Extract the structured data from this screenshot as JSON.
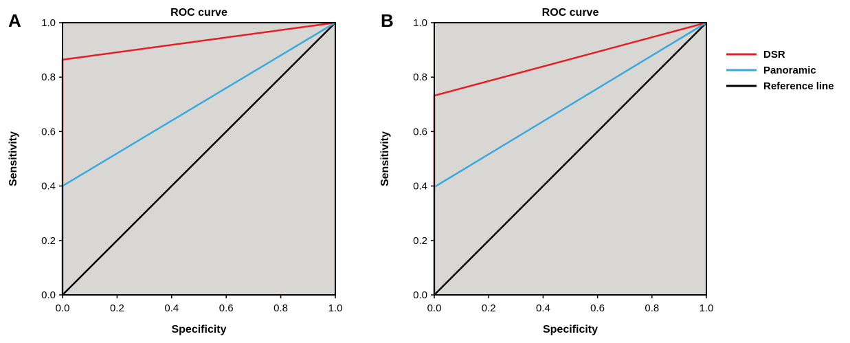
{
  "chart_data": [
    {
      "type": "line",
      "panel_label": "A",
      "title": "ROC curve",
      "xlabel": "Specificity",
      "ylabel": "Sensitivity",
      "xlim": [
        0,
        1
      ],
      "ylim": [
        0,
        1
      ],
      "xticks": [
        "0.0",
        "0.2",
        "0.4",
        "0.6",
        "0.8",
        "1.0"
      ],
      "yticks": [
        "0.0",
        "0.2",
        "0.4",
        "0.6",
        "0.8",
        "1.0"
      ],
      "grid": false,
      "background_color": "#d9d7d4",
      "series": [
        {
          "name": "DSR",
          "color": "#e31e24",
          "x": [
            0,
            0,
            1
          ],
          "y": [
            0,
            0.864,
            1
          ]
        },
        {
          "name": "Panoramic",
          "color": "#3aa8e0",
          "x": [
            0,
            0,
            1
          ],
          "y": [
            0,
            0.4,
            1
          ]
        },
        {
          "name": "Reference line",
          "color": "#000000",
          "x": [
            0,
            1
          ],
          "y": [
            0,
            1
          ]
        }
      ]
    },
    {
      "type": "line",
      "panel_label": "B",
      "title": "ROC curve",
      "xlabel": "Specificity",
      "ylabel": "Sensitivity",
      "xlim": [
        0,
        1
      ],
      "ylim": [
        0,
        1
      ],
      "xticks": [
        "0.0",
        "0.2",
        "0.4",
        "0.6",
        "0.8",
        "1.0"
      ],
      "yticks": [
        "0.0",
        "0.2",
        "0.4",
        "0.6",
        "0.8",
        "1.0"
      ],
      "grid": false,
      "background_color": "#d9d7d4",
      "series": [
        {
          "name": "DSR",
          "color": "#e31e24",
          "x": [
            0,
            0,
            1
          ],
          "y": [
            0,
            0.732,
            1
          ]
        },
        {
          "name": "Panoramic",
          "color": "#3aa8e0",
          "x": [
            0,
            0,
            1
          ],
          "y": [
            0,
            0.396,
            1
          ]
        },
        {
          "name": "Reference line",
          "color": "#000000",
          "x": [
            0,
            1
          ],
          "y": [
            0,
            1
          ]
        }
      ]
    }
  ],
  "legend": {
    "placement": "right",
    "items": [
      {
        "label": "DSR",
        "color": "#e31e24"
      },
      {
        "label": "Panoramic",
        "color": "#3aa8e0"
      },
      {
        "label": "Reference line",
        "color": "#000000"
      }
    ]
  }
}
